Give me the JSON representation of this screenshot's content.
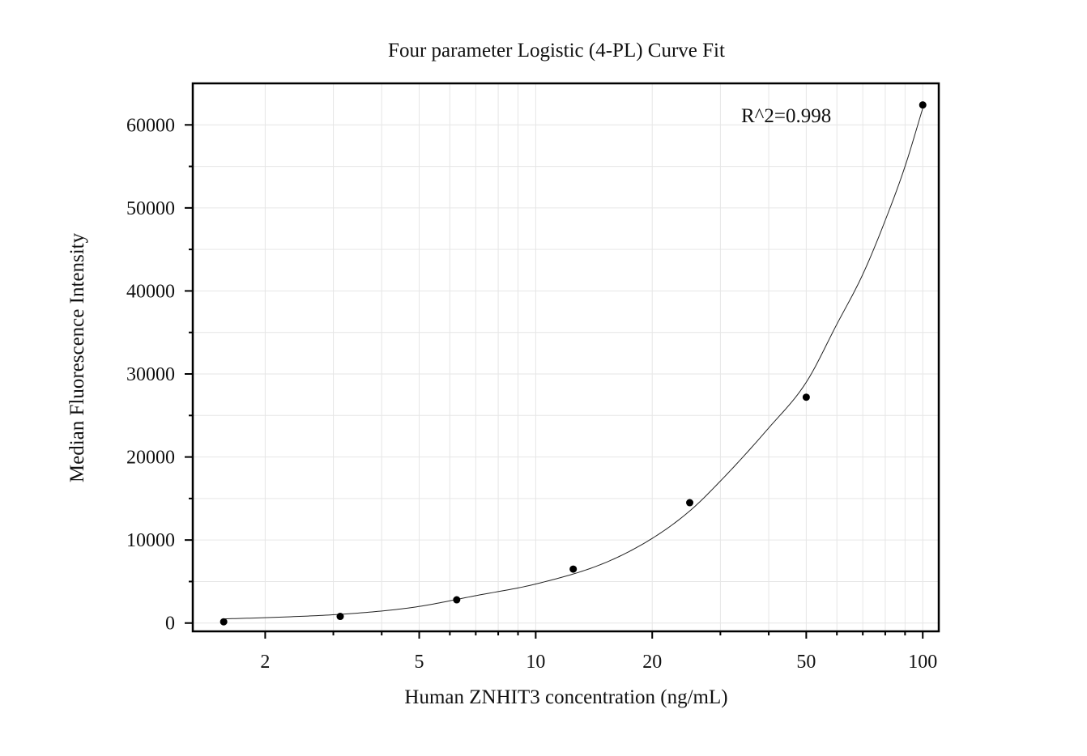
{
  "chart_data": {
    "type": "scatter",
    "title": "Four parameter Logistic (4-PL) Curve Fit",
    "xlabel": "Human ZNHIT3 concentration (ng/mL)",
    "ylabel": "Median Fluorescence Intensity",
    "x_scale": "log",
    "xlim": [
      1.3,
      110
    ],
    "ylim": [
      -1000,
      65000
    ],
    "x_ticks": [
      2,
      5,
      10,
      20,
      50,
      100
    ],
    "x_tick_labels": [
      "2",
      "5",
      "10",
      "20",
      "50",
      "100"
    ],
    "y_ticks": [
      0,
      10000,
      20000,
      30000,
      40000,
      50000,
      60000
    ],
    "y_tick_labels": [
      "0",
      "10000",
      "20000",
      "30000",
      "40000",
      "50000",
      "60000"
    ],
    "grid": true,
    "series": [
      {
        "x": [
          1.5625,
          3.125,
          6.25,
          12.5,
          25,
          50,
          100
        ],
        "y": [
          150,
          800,
          2800,
          6500,
          14500,
          27200,
          62400
        ]
      }
    ],
    "fit_curve": {
      "model": "4-PL",
      "x": [
        1.5625,
        2,
        3,
        4,
        5,
        7,
        10,
        15,
        20,
        25,
        30,
        40,
        50,
        60,
        70,
        80,
        90,
        100
      ],
      "y": [
        500,
        650,
        1000,
        1450,
        2000,
        3300,
        4700,
        7200,
        10200,
        13500,
        17100,
        23500,
        29000,
        36000,
        42000,
        48500,
        55000,
        62000
      ]
    },
    "annotations": [
      {
        "text": "R^2=0.998"
      }
    ]
  }
}
